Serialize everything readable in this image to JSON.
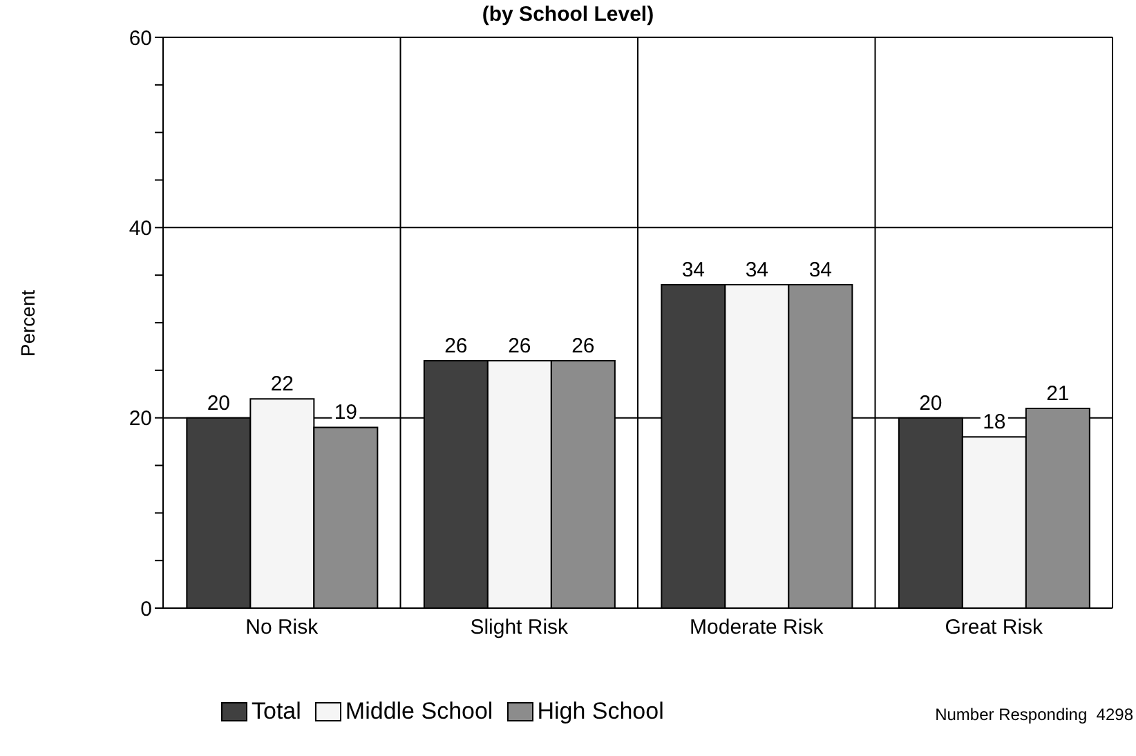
{
  "chart_data": {
    "type": "bar",
    "title": "(by School Level)",
    "ylabel": "Percent",
    "categories": [
      "No Risk",
      "Slight Risk",
      "Moderate Risk",
      "Great Risk"
    ],
    "series": [
      {
        "name": "Total",
        "color": "#404040",
        "values": [
          20,
          26,
          34,
          20
        ]
      },
      {
        "name": "Middle School",
        "color": "#f5f5f5",
        "values": [
          22,
          26,
          34,
          18
        ]
      },
      {
        "name": "High School",
        "color": "#8c8c8c",
        "values": [
          19,
          26,
          34,
          21
        ]
      }
    ],
    "ylim": [
      0,
      60
    ],
    "yticks": [
      0,
      {
        "value": 5,
        "label": null
      },
      {
        "value": 10,
        "label": null
      },
      {
        "value": 15,
        "label": null
      },
      20,
      {
        "value": 25,
        "label": null
      },
      {
        "value": 30,
        "label": null
      },
      {
        "value": 35,
        "label": null
      },
      40,
      {
        "value": 45,
        "label": null
      },
      {
        "value": 50,
        "label": null
      },
      {
        "value": 55,
        "label": null
      },
      60
    ],
    "grid": true,
    "data_labels": true,
    "legend": "bottom left",
    "annotations": [
      "Number Responding  4298"
    ]
  }
}
